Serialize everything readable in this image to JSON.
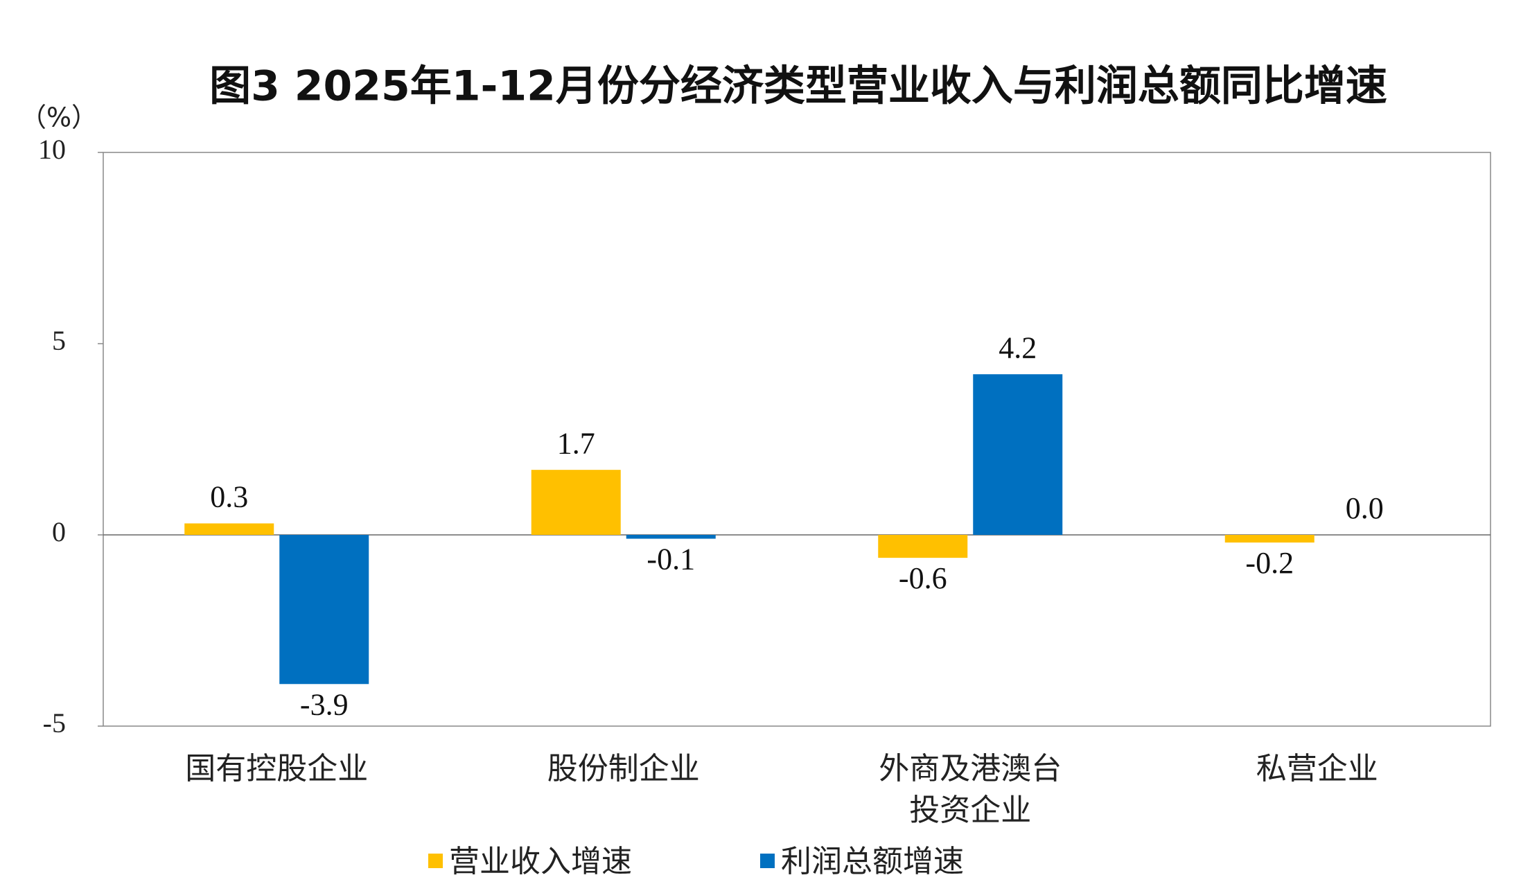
{
  "chart_data": {
    "type": "bar",
    "title": "图3 2025年1-12月份分经济类型营业收入与利润总额同比增速",
    "y_label": "（%）",
    "categories": [
      "国有控股企业",
      "股份制企业",
      "外商及港澳台投资企业",
      "私营企业"
    ],
    "series": [
      {
        "name": "营业收入增速",
        "color": "#FFC000",
        "values": [
          0.3,
          1.7,
          -0.6,
          -0.2
        ],
        "value_labels": [
          "0.3",
          "1.7",
          "-0.6",
          "-0.2"
        ]
      },
      {
        "name": "利润总额增速",
        "color": "#0070C0",
        "values": [
          -3.9,
          -0.1,
          4.2,
          0.0
        ],
        "value_labels": [
          "-3.9",
          "-0.1",
          "4.2",
          "0.0"
        ]
      }
    ],
    "ylim": [
      -5,
      10
    ],
    "yticks": [
      -5,
      0,
      5,
      10
    ],
    "grid": false,
    "legend": "bottom"
  }
}
